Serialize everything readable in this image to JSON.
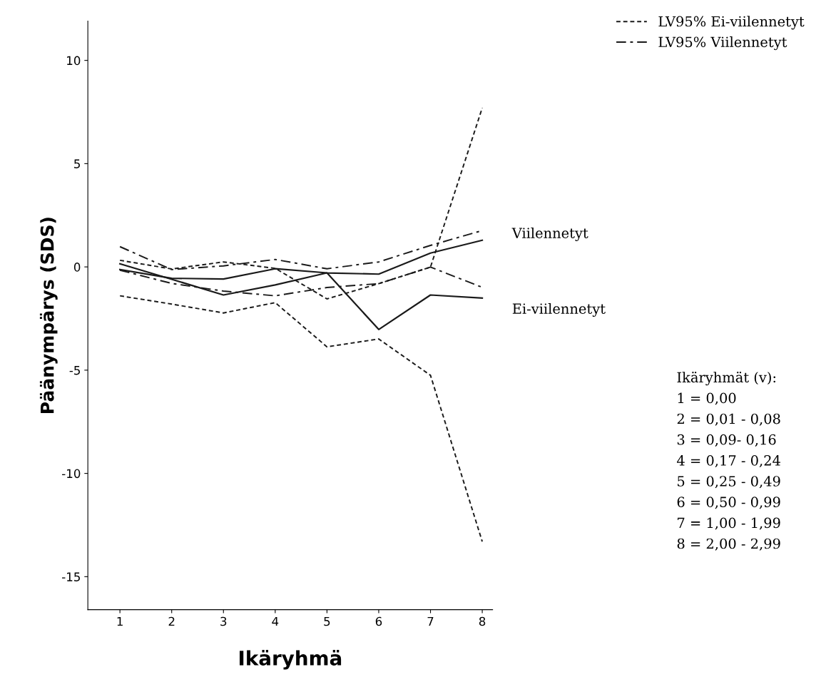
{
  "chart_data": {
    "type": "line",
    "xlabel": "Ikäryhmä",
    "ylabel": "Päänympärys (SDS)",
    "x": [
      1,
      2,
      3,
      4,
      5,
      6,
      7,
      8
    ],
    "xlim": [
      0.38,
      8.2
    ],
    "xticks": [
      1,
      2,
      3,
      4,
      5,
      6,
      7,
      8
    ],
    "ylim": [
      -16.6,
      11.9
    ],
    "yticks": [
      -15,
      -10,
      -5,
      0,
      5,
      10
    ],
    "grid": false,
    "legend": "top right",
    "marker": "none",
    "series": [
      {
        "name": "Viilennetyt",
        "color": "#1a1a1a",
        "line_style": "solid",
        "values": [
          -0.13,
          -0.55,
          -0.59,
          -0.09,
          -0.29,
          -0.35,
          0.67,
          1.29
        ]
      },
      {
        "name": "Ei-viilennetyt",
        "color": "#1a1a1a",
        "line_style": "solid",
        "values": [
          0.15,
          -0.6,
          -1.36,
          -0.87,
          -0.29,
          -3.03,
          -1.36,
          -1.51
        ]
      },
      {
        "name": "LV95% Ei-viilennetyt",
        "color": "#1a1a1a",
        "line_style": "dashed",
        "values": [
          0.32,
          -0.1,
          0.24,
          -0.07,
          -1.55,
          -0.81,
          -0.01,
          7.7
        ]
      },
      {
        "color": "#1a1a1a",
        "line_style": "dashed",
        "values": [
          -1.4,
          -1.8,
          -2.23,
          -1.73,
          -3.87,
          -3.49,
          -5.25,
          -13.3
        ]
      },
      {
        "name": "LV95% Viilennetyt",
        "color": "#1a1a1a",
        "line_style": "dashdot",
        "values": [
          0.98,
          -0.13,
          0.05,
          0.36,
          -0.09,
          0.24,
          1.04,
          1.76
        ]
      },
      {
        "color": "#1a1a1a",
        "line_style": "dashdot",
        "values": [
          -0.16,
          -0.8,
          -1.17,
          -1.4,
          -1.0,
          -0.81,
          -0.01,
          -0.99
        ]
      }
    ],
    "annotations": [
      "Ikäryhmät (v):",
      "1 = 0,00",
      "2 = 0,01 - 0,08",
      "3 = 0,09- 0,16",
      "4 = 0,17 - 0,24",
      "5 = 0,25 - 0,49",
      "6 = 0,50 - 0,99",
      "7 = 1,00 - 1,99",
      "8 = 2,00 - 2,99"
    ]
  }
}
